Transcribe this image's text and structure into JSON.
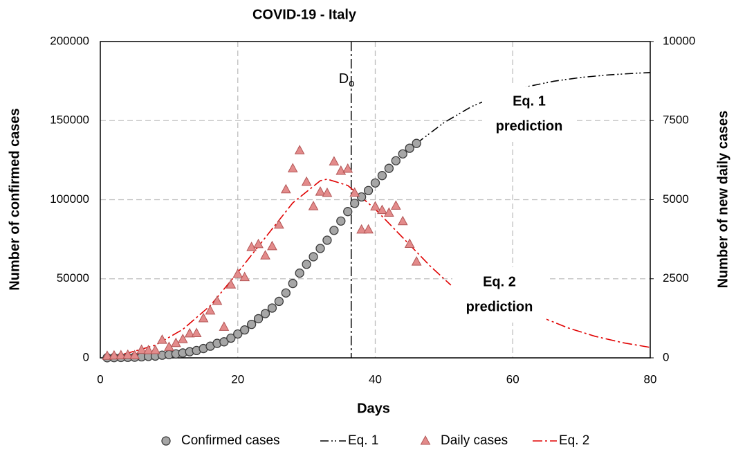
{
  "chart_data": {
    "type": "line",
    "title": "COVID-19 - Italy",
    "x_label": "Days",
    "y_label": "Number of confirmed cases",
    "y2_label": "Number of new daily cases",
    "xlim": [
      0,
      80
    ],
    "xticks": [
      0,
      20,
      40,
      60,
      80
    ],
    "ylim": [
      0,
      200000
    ],
    "yticks": [
      0,
      50000,
      100000,
      150000,
      200000
    ],
    "y2lim": [
      0,
      10000
    ],
    "y2ticks": [
      0,
      2500,
      5000,
      7500,
      10000
    ],
    "grid": true,
    "legend": "bottom",
    "vline": {
      "x": 36.5,
      "label": "D",
      "sub": "o"
    },
    "annotations": [
      {
        "lines": [
          "Eq. 1",
          "prediction"
        ]
      },
      {
        "lines": [
          "Eq. 2",
          "prediction"
        ]
      }
    ],
    "series": [
      {
        "name": "Confirmed cases",
        "kind": "scatter",
        "marker": "circle",
        "color": "#a6a6a6",
        "axis": "y",
        "x": [
          1,
          2,
          3,
          4,
          5,
          6,
          7,
          8,
          9,
          10,
          11,
          12,
          13,
          14,
          15,
          16,
          17,
          18,
          19,
          20,
          21,
          22,
          23,
          24,
          25,
          26,
          27,
          28,
          29,
          30,
          31,
          32,
          33,
          34,
          35,
          36,
          37,
          38,
          39,
          40,
          41,
          42,
          43,
          44,
          45,
          46
        ],
        "values": [
          79,
          150,
          229,
          322,
          400,
          650,
          888,
          1128,
          1694,
          2036,
          2502,
          3089,
          3858,
          4636,
          5883,
          7375,
          9172,
          10149,
          12462,
          15113,
          17660,
          21157,
          24747,
          27980,
          31506,
          35713,
          41035,
          47021,
          53578,
          59138,
          63927,
          69176,
          74386,
          80589,
          86498,
          92472,
          97689,
          101739,
          105792,
          110574,
          115242,
          119827,
          124632,
          128948,
          132547,
          135586
        ]
      },
      {
        "name": "Eq. 1",
        "kind": "line",
        "color": "#000000",
        "axis": "y",
        "x": [
          46,
          50,
          54,
          58,
          62,
          66,
          70,
          74,
          78,
          80
        ],
        "values": [
          135600,
          148740,
          158850,
          166210,
          171390,
          174930,
          177330,
          178930,
          179990,
          180370
        ]
      },
      {
        "name": "Daily cases",
        "kind": "scatter",
        "marker": "triangle",
        "color": "#e38b8b",
        "axis": "y2",
        "x": [
          1,
          2,
          3,
          4,
          5,
          6,
          7,
          8,
          9,
          10,
          11,
          12,
          13,
          14,
          15,
          16,
          17,
          18,
          19,
          20,
          21,
          22,
          23,
          24,
          25,
          26,
          27,
          28,
          29,
          30,
          31,
          32,
          33,
          34,
          35,
          36,
          37,
          38,
          39,
          40,
          41,
          42,
          43,
          44,
          45,
          46
        ],
        "values": [
          59,
          71,
          79,
          93,
          78,
          250,
          238,
          240,
          566,
          342,
          466,
          587,
          769,
          778,
          1247,
          1492,
          1797,
          977,
          2313,
          2651,
          2547,
          3497,
          3590,
          3233,
          3526,
          4207,
          5322,
          5986,
          6557,
          5560,
          4789,
          5249,
          5210,
          6203,
          5909,
          5974,
          5217,
          4050,
          4053,
          4782,
          4668,
          4585,
          4805,
          4316,
          3599,
          3039
        ]
      },
      {
        "name": "Eq. 2",
        "kind": "line",
        "color": "#e00000",
        "axis": "y2",
        "x": [
          1,
          4,
          8,
          12,
          16,
          20,
          24,
          28,
          32,
          33,
          36,
          40,
          44,
          48,
          51,
          58,
          64,
          68,
          72,
          76,
          80
        ],
        "values": [
          50,
          150,
          400,
          900,
          1650,
          2700,
          3800,
          4900,
          5600,
          5650,
          5450,
          4700,
          3800,
          2900,
          2300,
          null,
          1300,
          950,
          680,
          480,
          330
        ]
      }
    ]
  }
}
